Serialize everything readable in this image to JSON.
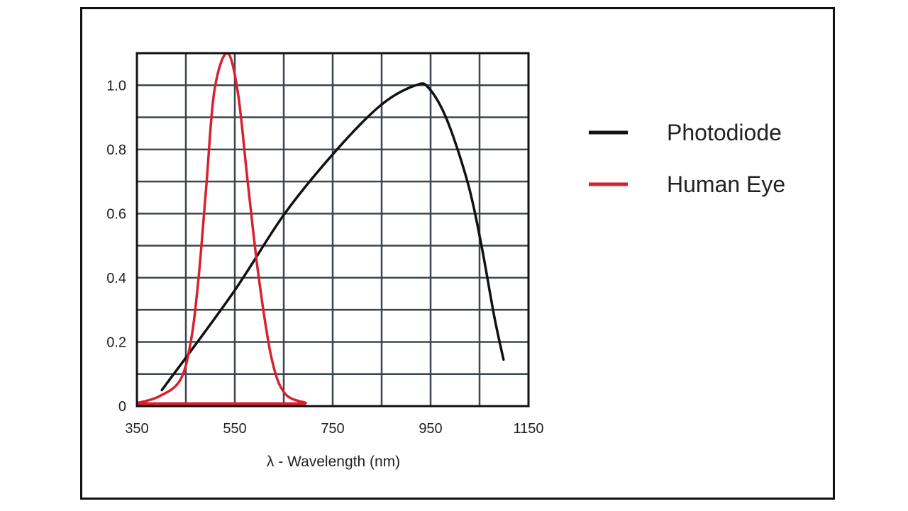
{
  "chart_data": {
    "type": "line",
    "title": "",
    "xlabel": "λ - Wavelength (nm)",
    "ylabel": "",
    "xlim": [
      350,
      1150
    ],
    "ylim": [
      0,
      1.1
    ],
    "xticks": [
      350,
      550,
      750,
      950,
      1150
    ],
    "xtick_labels": [
      "350",
      "550",
      "750",
      "950",
      "1150"
    ],
    "yticks": [
      0,
      0.2,
      0.4,
      0.6,
      0.8,
      1.0
    ],
    "ytick_labels": [
      "0",
      "0.2",
      "0.4",
      "0.6",
      "0.8",
      "1.0"
    ],
    "grid": true,
    "legend_position": "right",
    "series": [
      {
        "name": "Photodiode",
        "color": "#111111",
        "x": [
          401,
          545,
          652,
          759,
          850,
          920,
          947,
          984,
          1027,
          1054,
          1080,
          1099
        ],
        "y": [
          0.05,
          0.35,
          0.6,
          0.8,
          0.94,
          1.0,
          0.99,
          0.89,
          0.69,
          0.5,
          0.28,
          0.145
        ]
      },
      {
        "name": "Human Eye",
        "color": "#d9202e",
        "x": [
          352,
          395,
          438,
          460,
          476,
          492,
          508,
          534,
          556,
          577,
          599,
          625,
          652,
          695
        ],
        "y": [
          0.01,
          0.03,
          0.08,
          0.2,
          0.4,
          0.69,
          0.98,
          1.1,
          0.98,
          0.69,
          0.4,
          0.15,
          0.04,
          0.01
        ]
      }
    ]
  }
}
